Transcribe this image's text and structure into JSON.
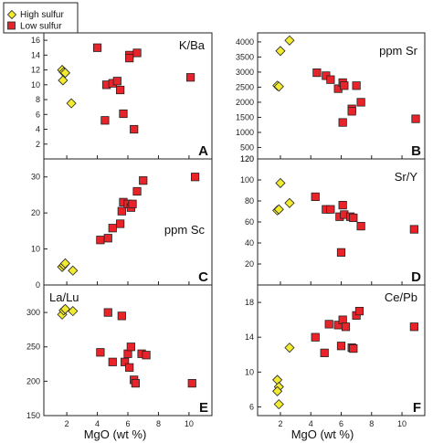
{
  "legend": [
    {
      "label": "High sulfur",
      "shape": "diamond",
      "color": "#f1ea2e"
    },
    {
      "label": "Low sulfur",
      "shape": "square",
      "color": "#e8242a"
    }
  ],
  "colors": {
    "high": "#f1ea2e",
    "low": "#e8242a",
    "stroke": "#222222"
  },
  "chart_data": [
    {
      "id": "A",
      "type": "scatter",
      "title": "K/Ba",
      "letter": "A",
      "xlabel": "",
      "xlim": [
        0.5,
        11.5
      ],
      "ylim": [
        0,
        17
      ],
      "yticks": [
        2,
        4,
        6,
        8,
        10,
        12,
        14,
        16
      ],
      "xticks": [
        2,
        4,
        6,
        8,
        10
      ],
      "xticklabels": [],
      "series": [
        {
          "name": "High sulfur",
          "points": [
            [
              1.7,
              12.0
            ],
            [
              1.8,
              11.7
            ],
            [
              1.9,
              11.6
            ],
            [
              1.75,
              10.6
            ],
            [
              2.3,
              7.5
            ]
          ]
        },
        {
          "name": "Low sulfur",
          "points": [
            [
              4.0,
              15.0
            ],
            [
              4.6,
              10.0
            ],
            [
              5.0,
              10.2
            ],
            [
              5.3,
              10.5
            ],
            [
              5.5,
              9.3
            ],
            [
              5.7,
              6.1
            ],
            [
              6.1,
              14.0
            ],
            [
              6.1,
              13.6
            ],
            [
              6.6,
              14.3
            ],
            [
              4.5,
              5.2
            ],
            [
              6.4,
              4.0
            ],
            [
              10.1,
              11.0
            ]
          ]
        }
      ]
    },
    {
      "id": "B",
      "type": "scatter",
      "title": "ppm Sr",
      "letter": "B",
      "xlabel": "",
      "xlim": [
        0.5,
        11.5
      ],
      "ylim": [
        120,
        4300
      ],
      "yticks": [
        120,
        500,
        1000,
        1500,
        2000,
        2500,
        3000,
        3500,
        4000
      ],
      "xticks": [
        2,
        4,
        6,
        8,
        10
      ],
      "xticklabels": [],
      "series": [
        {
          "name": "High sulfur",
          "points": [
            [
              1.8,
              2550
            ],
            [
              1.9,
              2520
            ],
            [
              2.0,
              3700
            ],
            [
              2.6,
              4050
            ]
          ]
        },
        {
          "name": "Low sulfur",
          "points": [
            [
              4.4,
              2980
            ],
            [
              5.0,
              2880
            ],
            [
              5.3,
              2750
            ],
            [
              5.8,
              2450
            ],
            [
              6.1,
              2650
            ],
            [
              6.2,
              2550
            ],
            [
              6.7,
              1780
            ],
            [
              6.7,
              1700
            ],
            [
              6.1,
              1330
            ],
            [
              7.0,
              2550
            ],
            [
              7.3,
              2000
            ],
            [
              10.9,
              1450
            ]
          ]
        }
      ]
    },
    {
      "id": "C",
      "type": "scatter",
      "title": "ppm Sc",
      "letter": "C",
      "xlabel": "",
      "xlim": [
        0.5,
        11.5
      ],
      "ylim": [
        0,
        35
      ],
      "yticks": [
        0,
        10,
        20,
        30
      ],
      "xticks": [
        2,
        4,
        6,
        8,
        10
      ],
      "xticklabels": [],
      "series": [
        {
          "name": "High sulfur",
          "points": [
            [
              1.7,
              5.0
            ],
            [
              1.8,
              5.5
            ],
            [
              1.9,
              6.0
            ],
            [
              2.4,
              4.0
            ]
          ]
        },
        {
          "name": "Low sulfur",
          "points": [
            [
              4.2,
              12.5
            ],
            [
              4.7,
              13.0
            ],
            [
              5.0,
              15.8
            ],
            [
              5.5,
              17.0
            ],
            [
              5.6,
              20.5
            ],
            [
              5.7,
              23.0
            ],
            [
              6.0,
              22.5
            ],
            [
              6.2,
              21.5
            ],
            [
              6.3,
              22.5
            ],
            [
              6.6,
              26.0
            ],
            [
              7.0,
              29.0
            ],
            [
              10.4,
              30.0
            ]
          ]
        }
      ]
    },
    {
      "id": "D",
      "type": "scatter",
      "title": "Sr/Y",
      "letter": "D",
      "xlabel": "",
      "xlim": [
        0.5,
        11.5
      ],
      "ylim": [
        0,
        120
      ],
      "yticks": [
        20,
        40,
        60,
        80,
        100,
        120
      ],
      "xticks": [
        2,
        4,
        6,
        8,
        10
      ],
      "xticklabels": [],
      "series": [
        {
          "name": "High sulfur",
          "points": [
            [
              1.8,
              71
            ],
            [
              1.9,
              72
            ],
            [
              2.0,
              97
            ],
            [
              2.6,
              78
            ]
          ]
        },
        {
          "name": "Low sulfur",
          "points": [
            [
              4.3,
              84
            ],
            [
              5.0,
              72
            ],
            [
              5.3,
              72
            ],
            [
              5.9,
              65
            ],
            [
              6.1,
              76
            ],
            [
              6.2,
              67
            ],
            [
              6.6,
              65
            ],
            [
              6.8,
              64
            ],
            [
              7.3,
              56
            ],
            [
              6.0,
              31
            ],
            [
              10.8,
              53
            ]
          ]
        }
      ]
    },
    {
      "id": "E",
      "type": "scatter",
      "title": "La/Lu",
      "letter": "E",
      "xlabel": "MgO (wt %)",
      "xlim": [
        0.5,
        11.5
      ],
      "ylim": [
        150,
        340
      ],
      "yticks": [
        150,
        200,
        250,
        300
      ],
      "xticks": [
        2,
        4,
        6,
        8,
        10
      ],
      "xticklabels": [
        "2",
        "4",
        "6",
        "8",
        "10"
      ],
      "series": [
        {
          "name": "High sulfur",
          "points": [
            [
              1.7,
              297
            ],
            [
              1.8,
              303
            ],
            [
              1.9,
              305
            ],
            [
              2.4,
              302
            ]
          ]
        },
        {
          "name": "Low sulfur",
          "points": [
            [
              4.2,
              242
            ],
            [
              4.7,
              300
            ],
            [
              5.0,
              228
            ],
            [
              5.6,
              295
            ],
            [
              5.8,
              228
            ],
            [
              6.0,
              240
            ],
            [
              6.1,
              220
            ],
            [
              6.4,
              202
            ],
            [
              6.5,
              197
            ],
            [
              6.2,
              250
            ],
            [
              6.9,
              240
            ],
            [
              7.2,
              238
            ],
            [
              10.2,
              197
            ]
          ]
        }
      ]
    },
    {
      "id": "F",
      "type": "scatter",
      "title": "Ce/Pb",
      "letter": "F",
      "xlabel": "MgO (wt %)",
      "xlim": [
        0.5,
        11.5
      ],
      "ylim": [
        5,
        20
      ],
      "yticks": [
        6,
        10,
        14,
        18
      ],
      "xticks": [
        2,
        4,
        6,
        8,
        10
      ],
      "xticklabels": [
        "2",
        "4",
        "6",
        "8",
        "10"
      ],
      "series": [
        {
          "name": "High sulfur",
          "points": [
            [
              1.8,
              9.1
            ],
            [
              1.9,
              8.3
            ],
            [
              1.8,
              7.8
            ],
            [
              1.9,
              6.3
            ],
            [
              2.6,
              12.8
            ]
          ]
        },
        {
          "name": "Low sulfur",
          "points": [
            [
              4.3,
              14.0
            ],
            [
              4.9,
              12.2
            ],
            [
              5.2,
              15.5
            ],
            [
              5.8,
              15.4
            ],
            [
              6.0,
              13.0
            ],
            [
              6.1,
              16.0
            ],
            [
              6.3,
              15.2
            ],
            [
              6.7,
              12.8
            ],
            [
              6.8,
              12.7
            ],
            [
              7.0,
              16.5
            ],
            [
              7.2,
              17.0
            ],
            [
              10.8,
              15.2
            ]
          ]
        }
      ]
    }
  ]
}
